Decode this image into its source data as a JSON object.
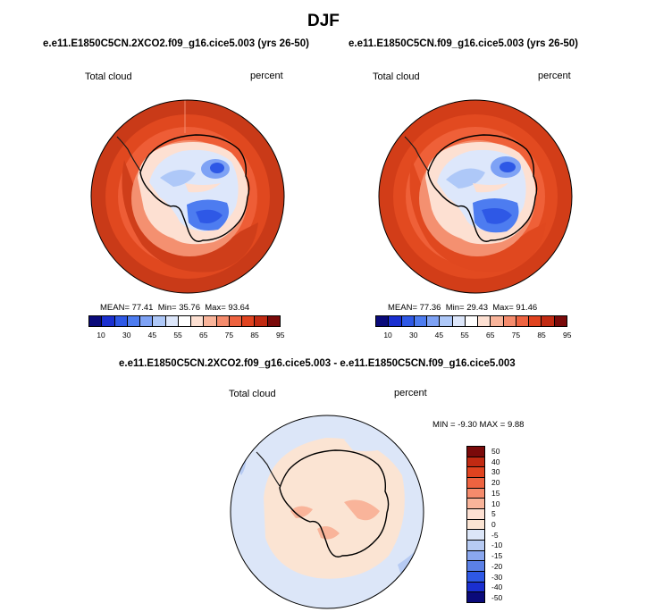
{
  "title": "DJF",
  "panels": [
    {
      "case": "e.e11.E1850C5CN.2XCO2.f09_g16.cice5.003 (yrs 26-50)",
      "variable": "Total cloud",
      "units": "percent",
      "mean_label": "MEAN=",
      "mean": "77.41",
      "min_label": "Min=",
      "min": "35.76",
      "max_label": "Max=",
      "max": "93.64"
    },
    {
      "case": "e.e11.E1850C5CN.f09_g16.cice5.003 (yrs 26-50)",
      "variable": "Total cloud",
      "units": "percent",
      "mean_label": "MEAN=",
      "mean": "77.36",
      "min_label": "Min=",
      "min": "29.43",
      "max_label": "Max=",
      "max": "91.46"
    }
  ],
  "diff": {
    "title": "e.e11.E1850C5CN.2XCO2.f09_g16.cice5.003 - e.e11.E1850C5CN.f09_g16.cice5.003",
    "variable": "Total cloud",
    "units": "percent",
    "minmax": "MIN =  -9.30 MAX =   9.88"
  },
  "colorbar_ticks": [
    "10",
    "30",
    "45",
    "55",
    "65",
    "75",
    "85",
    "95"
  ],
  "colorbar_colors": [
    "#0a0a7a",
    "#1a2fd0",
    "#2e58e6",
    "#4d7cf0",
    "#7ea2f5",
    "#aec8f8",
    "#dde7fb",
    "#ffffff",
    "#fde0d2",
    "#f9b49a",
    "#f58b6c",
    "#ee6340",
    "#e0431f",
    "#c12a12",
    "#7a0a0a"
  ],
  "diff_ticks": [
    "50",
    "40",
    "30",
    "20",
    "15",
    "10",
    "5",
    "0",
    "-5",
    "-10",
    "-15",
    "-20",
    "-30",
    "-40",
    "-50"
  ],
  "diff_colors": [
    "#7a0a0a",
    "#c12a12",
    "#e0431f",
    "#ee6340",
    "#f58b6c",
    "#f9b49a",
    "#fde0d2",
    "#fbe4d3",
    "#dce6f8",
    "#b7cbf3",
    "#8aa7ee",
    "#5b80e6",
    "#2e58e6",
    "#1a2fd0",
    "#0a0a7a"
  ]
}
